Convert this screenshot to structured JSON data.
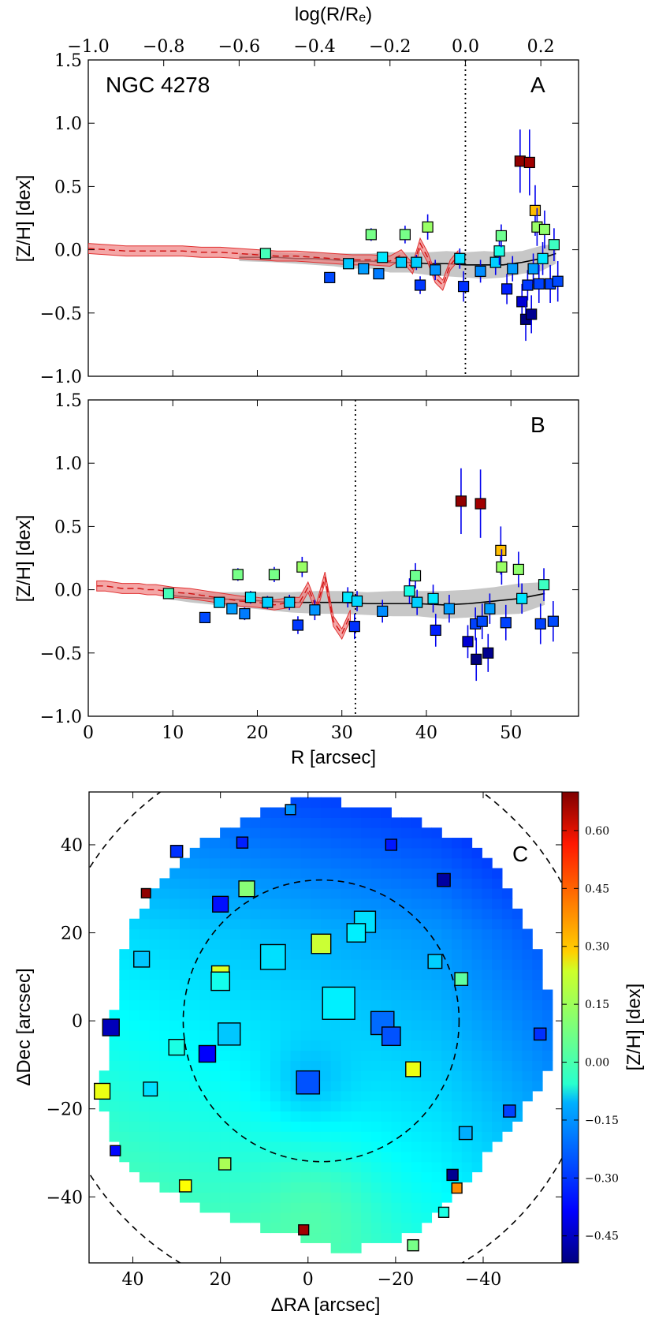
{
  "chart_data": [
    {
      "panel": "A",
      "type": "scatter",
      "title_text": "NGC 4278",
      "panel_label": "A",
      "xaxis_top_label": "log(R/Rₑ)",
      "xaxis_top_ticks": [
        "−1.0",
        "−0.8",
        "−0.6",
        "−0.4",
        "−0.2",
        "0.0",
        "0.2"
      ],
      "xaxis_top_range": [
        -1.0,
        0.3
      ],
      "ylabel": "[Z/H] [dex]",
      "ylim": [
        -1.0,
        1.5
      ],
      "yticks": [
        "−1.0",
        "−0.5",
        "0.0",
        "0.5",
        "1.0",
        "1.5"
      ],
      "reference_line_logx": 0.0,
      "points": [
        {
          "x": -0.53,
          "y": -0.03,
          "c": 0.02,
          "err": 0.03
        },
        {
          "x": -0.36,
          "y": -0.22,
          "c": -0.28,
          "err": 0.03
        },
        {
          "x": -0.31,
          "y": -0.11,
          "c": -0.13,
          "err": 0.04
        },
        {
          "x": -0.27,
          "y": -0.15,
          "c": -0.18,
          "err": 0.04
        },
        {
          "x": -0.25,
          "y": 0.12,
          "c": 0.08,
          "err": 0.05
        },
        {
          "x": -0.23,
          "y": -0.19,
          "c": -0.22,
          "err": 0.04
        },
        {
          "x": -0.22,
          "y": -0.06,
          "c": -0.09,
          "err": 0.04
        },
        {
          "x": -0.17,
          "y": -0.1,
          "c": -0.12,
          "err": 0.04
        },
        {
          "x": -0.16,
          "y": 0.12,
          "c": 0.08,
          "err": 0.07
        },
        {
          "x": -0.13,
          "y": -0.1,
          "c": -0.12,
          "err": 0.06
        },
        {
          "x": -0.12,
          "y": -0.28,
          "c": -0.3,
          "err": 0.07
        },
        {
          "x": -0.1,
          "y": 0.18,
          "c": 0.12,
          "err": 0.1
        },
        {
          "x": -0.08,
          "y": -0.16,
          "c": -0.19,
          "err": 0.08
        },
        {
          "x": -0.015,
          "y": -0.07,
          "c": -0.1,
          "err": 0.08
        },
        {
          "x": -0.005,
          "y": -0.29,
          "c": -0.31,
          "err": 0.12
        },
        {
          "x": 0.04,
          "y": -0.17,
          "c": -0.2,
          "err": 0.09
        },
        {
          "x": 0.08,
          "y": -0.1,
          "c": -0.12,
          "err": 0.1
        },
        {
          "x": 0.09,
          "y": -0.01,
          "c": -0.03,
          "err": 0.11
        },
        {
          "x": 0.095,
          "y": 0.11,
          "c": 0.07,
          "err": 0.09
        },
        {
          "x": 0.11,
          "y": -0.31,
          "c": -0.33,
          "err": 0.12
        },
        {
          "x": 0.125,
          "y": -0.15,
          "c": -0.18,
          "err": 0.1
        },
        {
          "x": 0.145,
          "y": 0.7,
          "c": 0.68,
          "err": 0.25
        },
        {
          "x": 0.15,
          "y": -0.41,
          "c": -0.42,
          "err": 0.14
        },
        {
          "x": 0.16,
          "y": -0.55,
          "c": -0.52,
          "err": 0.17
        },
        {
          "x": 0.165,
          "y": -0.28,
          "c": -0.3,
          "err": 0.12
        },
        {
          "x": 0.17,
          "y": 0.69,
          "c": 0.66,
          "err": 0.26
        },
        {
          "x": 0.175,
          "y": -0.51,
          "c": -0.5,
          "err": 0.15
        },
        {
          "x": 0.18,
          "y": -0.15,
          "c": -0.18,
          "err": 0.12
        },
        {
          "x": 0.185,
          "y": 0.31,
          "c": 0.32,
          "err": 0.2
        },
        {
          "x": 0.19,
          "y": 0.18,
          "c": 0.12,
          "err": 0.15
        },
        {
          "x": 0.195,
          "y": -0.27,
          "c": -0.29,
          "err": 0.15
        },
        {
          "x": 0.205,
          "y": -0.07,
          "c": -0.09,
          "err": 0.13
        },
        {
          "x": 0.21,
          "y": 0.16,
          "c": 0.11,
          "err": 0.15
        },
        {
          "x": 0.225,
          "y": -0.27,
          "c": -0.29,
          "err": 0.15
        },
        {
          "x": 0.235,
          "y": 0.04,
          "c": 0.01,
          "err": 0.13
        },
        {
          "x": 0.245,
          "y": -0.25,
          "c": -0.28,
          "err": 0.16
        }
      ],
      "red_profile_x": [
        -1.0,
        -0.95,
        -0.9,
        -0.85,
        -0.8,
        -0.75,
        -0.7,
        -0.65,
        -0.6,
        -0.55,
        -0.5,
        -0.45,
        -0.4,
        -0.35,
        -0.3,
        -0.25,
        -0.2,
        -0.17,
        -0.14,
        -0.12,
        -0.1,
        -0.08,
        -0.06,
        -0.04,
        -0.02
      ],
      "red_profile_y": [
        0.01,
        0.0,
        -0.01,
        -0.01,
        -0.01,
        -0.01,
        -0.02,
        -0.02,
        -0.03,
        -0.04,
        -0.05,
        -0.05,
        -0.06,
        -0.07,
        -0.08,
        -0.08,
        -0.09,
        -0.04,
        -0.15,
        0.05,
        -0.06,
        -0.22,
        -0.28,
        -0.12,
        -0.05
      ],
      "red_profile_err": 0.04,
      "grey_profile_x": [
        -0.6,
        -0.5,
        -0.45,
        -0.4,
        -0.35,
        -0.3,
        -0.25,
        -0.2,
        -0.15,
        -0.1,
        -0.05,
        0.0,
        0.05,
        0.1,
        0.15,
        0.2,
        0.24
      ],
      "grey_profile_y": [
        -0.06,
        -0.06,
        -0.07,
        -0.07,
        -0.08,
        -0.09,
        -0.09,
        -0.1,
        -0.1,
        -0.11,
        -0.11,
        -0.12,
        -0.12,
        -0.12,
        -0.1,
        -0.07,
        -0.03
      ],
      "grey_profile_err": [
        0.03,
        0.04,
        0.04,
        0.05,
        0.05,
        0.06,
        0.06,
        0.08,
        0.08,
        0.09,
        0.1,
        0.1,
        0.11,
        0.1,
        0.09,
        0.1,
        0.08
      ]
    },
    {
      "panel": "B",
      "type": "scatter",
      "panel_label": "B",
      "xlabel": "R [arcsec]",
      "xlim": [
        0,
        58
      ],
      "xticks": [
        "0",
        "10",
        "20",
        "30",
        "40",
        "50"
      ],
      "ylabel": "[Z/H] [dex]",
      "ylim": [
        -1.0,
        1.5
      ],
      "yticks": [
        "−1.0",
        "−0.5",
        "0.0",
        "0.5",
        "1.0",
        "1.5"
      ],
      "reference_line_x": 31.6,
      "points": [
        {
          "x": 9.5,
          "y": -0.03,
          "c": 0.02,
          "err": 0.03
        },
        {
          "x": 13.8,
          "y": -0.22,
          "c": -0.28,
          "err": 0.03
        },
        {
          "x": 15.5,
          "y": -0.1,
          "c": -0.12,
          "err": 0.04
        },
        {
          "x": 17.0,
          "y": -0.15,
          "c": -0.18,
          "err": 0.04
        },
        {
          "x": 17.7,
          "y": 0.12,
          "c": 0.08,
          "err": 0.05
        },
        {
          "x": 18.5,
          "y": -0.19,
          "c": -0.22,
          "err": 0.05
        },
        {
          "x": 19.2,
          "y": -0.06,
          "c": -0.09,
          "err": 0.05
        },
        {
          "x": 21.2,
          "y": -0.1,
          "c": -0.12,
          "err": 0.05
        },
        {
          "x": 22.0,
          "y": 0.12,
          "c": 0.08,
          "err": 0.06
        },
        {
          "x": 23.8,
          "y": -0.1,
          "c": -0.12,
          "err": 0.06
        },
        {
          "x": 24.8,
          "y": -0.28,
          "c": -0.3,
          "err": 0.07
        },
        {
          "x": 25.3,
          "y": 0.18,
          "c": 0.12,
          "err": 0.08
        },
        {
          "x": 26.8,
          "y": -0.16,
          "c": -0.19,
          "err": 0.08
        },
        {
          "x": 30.7,
          "y": -0.06,
          "c": -0.09,
          "err": 0.08
        },
        {
          "x": 31.5,
          "y": -0.29,
          "c": -0.31,
          "err": 0.1
        },
        {
          "x": 31.8,
          "y": -0.09,
          "c": -0.11,
          "err": 0.08
        },
        {
          "x": 34.8,
          "y": -0.17,
          "c": -0.2,
          "err": 0.09
        },
        {
          "x": 38.0,
          "y": -0.01,
          "c": -0.03,
          "err": 0.1
        },
        {
          "x": 38.7,
          "y": 0.11,
          "c": 0.07,
          "err": 0.1
        },
        {
          "x": 38.9,
          "y": -0.1,
          "c": -0.12,
          "err": 0.1
        },
        {
          "x": 40.8,
          "y": -0.07,
          "c": -0.09,
          "err": 0.11
        },
        {
          "x": 41.1,
          "y": -0.32,
          "c": -0.33,
          "err": 0.13
        },
        {
          "x": 42.7,
          "y": -0.15,
          "c": -0.18,
          "err": 0.11
        },
        {
          "x": 44.1,
          "y": 0.7,
          "c": 0.68,
          "err": 0.26
        },
        {
          "x": 44.9,
          "y": -0.41,
          "c": -0.42,
          "err": 0.13
        },
        {
          "x": 45.8,
          "y": -0.27,
          "c": -0.29,
          "err": 0.13
        },
        {
          "x": 45.9,
          "y": -0.55,
          "c": -0.52,
          "err": 0.17
        },
        {
          "x": 46.4,
          "y": 0.68,
          "c": 0.66,
          "err": 0.27
        },
        {
          "x": 46.6,
          "y": -0.25,
          "c": -0.28,
          "err": 0.14
        },
        {
          "x": 47.3,
          "y": -0.5,
          "c": -0.5,
          "err": 0.15
        },
        {
          "x": 47.5,
          "y": -0.15,
          "c": -0.18,
          "err": 0.12
        },
        {
          "x": 48.8,
          "y": 0.31,
          "c": 0.32,
          "err": 0.19
        },
        {
          "x": 48.9,
          "y": 0.18,
          "c": 0.12,
          "err": 0.14
        },
        {
          "x": 49.4,
          "y": -0.26,
          "c": -0.29,
          "err": 0.14
        },
        {
          "x": 50.9,
          "y": 0.16,
          "c": 0.11,
          "err": 0.14
        },
        {
          "x": 51.3,
          "y": -0.07,
          "c": -0.09,
          "err": 0.12
        },
        {
          "x": 53.5,
          "y": -0.27,
          "c": -0.29,
          "err": 0.16
        },
        {
          "x": 53.9,
          "y": 0.04,
          "c": 0.01,
          "err": 0.13
        },
        {
          "x": 55.0,
          "y": -0.25,
          "c": -0.28,
          "err": 0.16
        }
      ],
      "red_profile_x": [
        1,
        2,
        3,
        4,
        5,
        6,
        7,
        8,
        9,
        10,
        12,
        14,
        16,
        18,
        20,
        22,
        24,
        25,
        26,
        27,
        28,
        29,
        30,
        31
      ],
      "red_profile_y": [
        0.03,
        0.03,
        0.02,
        0.01,
        0.01,
        0.01,
        0.0,
        0.0,
        -0.01,
        -0.02,
        -0.03,
        -0.05,
        -0.07,
        -0.09,
        -0.1,
        -0.12,
        -0.1,
        -0.1,
        0.02,
        -0.15,
        0.1,
        -0.25,
        -0.35,
        -0.2
      ],
      "red_profile_err": 0.04,
      "grey_profile_x": [
        9,
        12,
        15,
        18,
        21,
        24,
        27,
        30,
        33,
        36,
        39,
        42,
        45,
        48,
        51,
        54
      ],
      "grey_profile_y": [
        -0.04,
        -0.06,
        -0.07,
        -0.08,
        -0.09,
        -0.1,
        -0.1,
        -0.1,
        -0.11,
        -0.11,
        -0.11,
        -0.12,
        -0.11,
        -0.09,
        -0.07,
        -0.03
      ],
      "grey_profile_err": [
        0.03,
        0.04,
        0.05,
        0.06,
        0.07,
        0.08,
        0.09,
        0.09,
        0.09,
        0.1,
        0.1,
        0.11,
        0.11,
        0.11,
        0.12,
        0.09
      ]
    },
    {
      "panel": "C",
      "type": "heatmap",
      "panel_label": "C",
      "xlabel": "ΔRA [arcsec]",
      "ylabel": "ΔDec [arcsec]",
      "xlim": [
        50,
        -58
      ],
      "ylim": [
        -55,
        52
      ],
      "xticks": [
        "40",
        "20",
        "0",
        "−20",
        "−40"
      ],
      "yticks": [
        "−40",
        "−20",
        "0",
        "20",
        "40"
      ],
      "colorbar_label": "[Z/H] [dex]",
      "colorbar_range": [
        -0.52,
        0.7
      ],
      "colorbar_ticks": [
        "0.60",
        "0.45",
        "0.30",
        "0.15",
        "0.00",
        "−0.15",
        "−0.30",
        "−0.45"
      ],
      "ellipse_inner": {
        "cx": -3,
        "cy": 0,
        "rx": 31.5,
        "ry": 32
      },
      "ellipse_outer": {
        "cx": -3,
        "cy": 0,
        "rx": 63,
        "ry": 64
      },
      "squares": [
        {
          "ra": 4,
          "dec": 48,
          "c": -0.19,
          "s": 2.2
        },
        {
          "ra": 30,
          "dec": 38.5,
          "c": -0.31,
          "s": 2.6
        },
        {
          "ra": 15,
          "dec": 40.5,
          "c": -0.33,
          "s": 2.4
        },
        {
          "ra": -19,
          "dec": 40,
          "c": -0.34,
          "s": 2.4
        },
        {
          "ra": 37,
          "dec": 29,
          "c": 0.68,
          "s": 2.0
        },
        {
          "ra": 14,
          "dec": 30,
          "c": 0.1,
          "s": 3.4
        },
        {
          "ra": -31,
          "dec": 32,
          "c": -0.48,
          "s": 2.8
        },
        {
          "ra": 20,
          "dec": 26.5,
          "c": -0.35,
          "s": 3.4
        },
        {
          "ra": -13,
          "dec": 22.5,
          "c": -0.1,
          "s": 4.6
        },
        {
          "ra": -11,
          "dec": 20,
          "c": -0.08,
          "s": 4.0
        },
        {
          "ra": -3,
          "dec": 17.5,
          "c": 0.18,
          "s": 4.2
        },
        {
          "ra": 8,
          "dec": 14.5,
          "c": -0.1,
          "s": 5.4
        },
        {
          "ra": 38,
          "dec": 14,
          "c": -0.13,
          "s": 3.4
        },
        {
          "ra": -29,
          "dec": 13.5,
          "c": -0.12,
          "s": 3.0
        },
        {
          "ra": 20,
          "dec": 10.5,
          "c": 0.2,
          "s": 3.8
        },
        {
          "ra": 20,
          "dec": 9,
          "c": -0.04,
          "s": 4.0
        },
        {
          "ra": -35,
          "dec": 9.5,
          "c": 0.05,
          "s": 2.8
        },
        {
          "ra": -7,
          "dec": 4,
          "c": -0.08,
          "s": 7.0
        },
        {
          "ra": -17,
          "dec": -0.5,
          "c": -0.24,
          "s": 5.0
        },
        {
          "ra": -19,
          "dec": -3.5,
          "c": -0.27,
          "s": 4.0
        },
        {
          "ra": 45,
          "dec": -1.5,
          "c": -0.45,
          "s": 3.6
        },
        {
          "ra": -53,
          "dec": -3,
          "c": -0.31,
          "s": 2.6
        },
        {
          "ra": 18,
          "dec": -3,
          "c": -0.13,
          "s": 4.8
        },
        {
          "ra": 30,
          "dec": -6,
          "c": -0.03,
          "s": 3.4
        },
        {
          "ra": 23,
          "dec": -7.5,
          "c": -0.37,
          "s": 3.6
        },
        {
          "ra": -24,
          "dec": -11,
          "c": 0.22,
          "s": 3.2
        },
        {
          "ra": 0,
          "dec": -14,
          "c": -0.27,
          "s": 5.0
        },
        {
          "ra": 47,
          "dec": -16,
          "c": 0.22,
          "s": 3.4
        },
        {
          "ra": 36,
          "dec": -15.5,
          "c": -0.1,
          "s": 3.0
        },
        {
          "ra": -46,
          "dec": -20.5,
          "c": -0.29,
          "s": 2.6
        },
        {
          "ra": -36,
          "dec": -25.5,
          "c": -0.16,
          "s": 2.8
        },
        {
          "ra": 44,
          "dec": -29.5,
          "c": -0.36,
          "s": 2.2
        },
        {
          "ra": 19,
          "dec": -32.5,
          "c": 0.14,
          "s": 2.6
        },
        {
          "ra": -33,
          "dec": -35,
          "c": -0.5,
          "s": 2.4
        },
        {
          "ra": 28,
          "dec": -37.5,
          "c": 0.24,
          "s": 2.6
        },
        {
          "ra": -34,
          "dec": -38,
          "c": 0.38,
          "s": 2.2
        },
        {
          "ra": -31,
          "dec": -43.5,
          "c": -0.03,
          "s": 2.2
        },
        {
          "ra": 1,
          "dec": -47.5,
          "c": 0.66,
          "s": 2.2
        },
        {
          "ra": -24,
          "dec": -51,
          "c": 0.08,
          "s": 2.4
        }
      ]
    }
  ]
}
